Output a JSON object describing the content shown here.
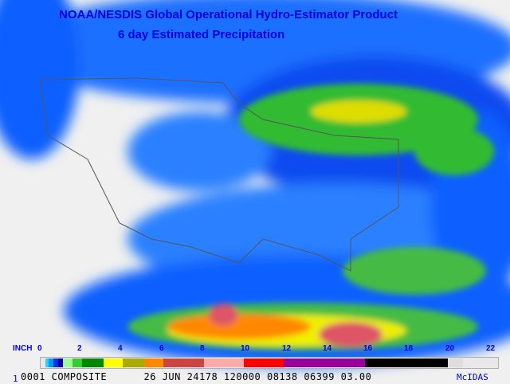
{
  "title": {
    "line1": "NOAA/NESDIS Global Operational Hydro-Estimator Product",
    "line2": "6 day Estimated Precipitation"
  },
  "legend": {
    "unit": "INCH",
    "ticks": [
      "0",
      "2",
      "4",
      "6",
      "8",
      "10",
      "12",
      "14",
      "16",
      "18",
      "20",
      "22"
    ],
    "colors": [
      "#33ccff",
      "#0099ff",
      "#0033dd",
      "#0000aa",
      "#99ff99",
      "#33cc33",
      "#008800",
      "#ffff00",
      "#aaaa00",
      "#ff8800",
      "#cc4444",
      "#ffaaaa",
      "#ff0000",
      "#990099",
      "#000000",
      "#dddddd"
    ]
  },
  "footer": {
    "frame": "1",
    "info": "0001 COMPOSITE      26 JUN 24178 120000 08138 06399 03.00",
    "brand": "McIDAS"
  }
}
